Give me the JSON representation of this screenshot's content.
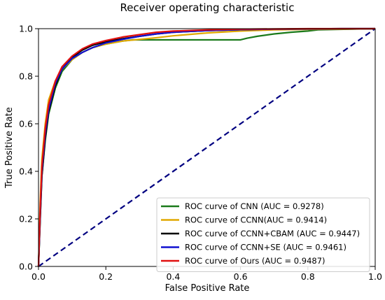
{
  "chart_data": {
    "type": "line",
    "title": "Receiver operating characteristic",
    "xlabel": "False Positive Rate",
    "ylabel": "True Positive Rate",
    "xlim": [
      0.0,
      1.0
    ],
    "ylim": [
      0.0,
      1.0
    ],
    "xticks": [
      "0.0",
      "0.2",
      "0.4",
      "0.6",
      "0.8",
      "1.0"
    ],
    "yticks": [
      "0.0",
      "0.2",
      "0.4",
      "0.6",
      "0.8",
      "1.0"
    ],
    "grid": false,
    "legend_position": "lower right",
    "series": [
      {
        "name": "ROC curve of CNN (AUC = 0.9278)",
        "color": "#1a7a1a",
        "x": [
          0,
          0.005,
          0.01,
          0.02,
          0.03,
          0.05,
          0.07,
          0.1,
          0.13,
          0.16,
          0.2,
          0.25,
          0.28,
          0.3,
          0.4,
          0.5,
          0.6,
          0.62,
          0.65,
          0.7,
          0.75,
          0.8,
          0.83,
          1.0
        ],
        "y": [
          0,
          0.2,
          0.38,
          0.53,
          0.64,
          0.75,
          0.82,
          0.87,
          0.9,
          0.92,
          0.935,
          0.948,
          0.953,
          0.953,
          0.953,
          0.953,
          0.953,
          0.96,
          0.968,
          0.978,
          0.985,
          0.99,
          0.995,
          1.0
        ]
      },
      {
        "name": "ROC curve of CCNN(AUC = 0.9414)",
        "color": "#e0a800",
        "x": [
          0,
          0.005,
          0.01,
          0.02,
          0.03,
          0.05,
          0.07,
          0.1,
          0.13,
          0.16,
          0.2,
          0.25,
          0.3,
          0.35,
          0.4,
          0.5,
          0.6,
          0.7,
          0.8,
          0.9,
          1.0
        ],
        "y": [
          0,
          0.27,
          0.45,
          0.6,
          0.7,
          0.78,
          0.83,
          0.87,
          0.9,
          0.92,
          0.935,
          0.948,
          0.955,
          0.962,
          0.97,
          0.982,
          0.99,
          0.995,
          0.997,
          0.998,
          1.0
        ]
      },
      {
        "name": "ROC curve of CCNN+CBAM (AUC = 0.9447)",
        "color": "#000000",
        "x": [
          0,
          0.005,
          0.01,
          0.02,
          0.03,
          0.05,
          0.07,
          0.1,
          0.13,
          0.16,
          0.2,
          0.25,
          0.3,
          0.35,
          0.4,
          0.5,
          0.6,
          0.7,
          0.8,
          0.9,
          1.0
        ],
        "y": [
          0,
          0.2,
          0.38,
          0.54,
          0.65,
          0.76,
          0.83,
          0.88,
          0.91,
          0.93,
          0.945,
          0.958,
          0.968,
          0.978,
          0.985,
          0.992,
          0.996,
          0.998,
          0.999,
          1.0,
          1.0
        ]
      },
      {
        "name": "ROC curve of CCNN+SE (AUC = 0.9461)",
        "color": "#1010d0",
        "x": [
          0,
          0.005,
          0.01,
          0.02,
          0.03,
          0.05,
          0.07,
          0.1,
          0.13,
          0.16,
          0.2,
          0.25,
          0.3,
          0.35,
          0.4,
          0.5,
          0.6,
          0.7,
          0.8,
          0.9,
          1.0
        ],
        "y": [
          0,
          0.22,
          0.4,
          0.56,
          0.66,
          0.77,
          0.83,
          0.875,
          0.9,
          0.92,
          0.94,
          0.955,
          0.968,
          0.978,
          0.985,
          0.992,
          0.996,
          0.998,
          0.999,
          1.0,
          1.0
        ]
      },
      {
        "name": "ROC curve of Ours (AUC = 0.9487)",
        "color": "#e01010",
        "x": [
          0,
          0.005,
          0.01,
          0.02,
          0.03,
          0.05,
          0.07,
          0.1,
          0.13,
          0.16,
          0.2,
          0.25,
          0.3,
          0.35,
          0.4,
          0.5,
          0.6,
          0.7,
          0.8,
          0.9,
          1.0
        ],
        "y": [
          0,
          0.24,
          0.42,
          0.58,
          0.68,
          0.78,
          0.84,
          0.885,
          0.915,
          0.935,
          0.95,
          0.965,
          0.975,
          0.985,
          0.99,
          0.995,
          0.998,
          0.999,
          1.0,
          1.0,
          1.0
        ]
      }
    ],
    "reference_line": {
      "style": "dashed",
      "color": "#000080",
      "x": [
        0,
        1
      ],
      "y": [
        0,
        1
      ]
    }
  }
}
